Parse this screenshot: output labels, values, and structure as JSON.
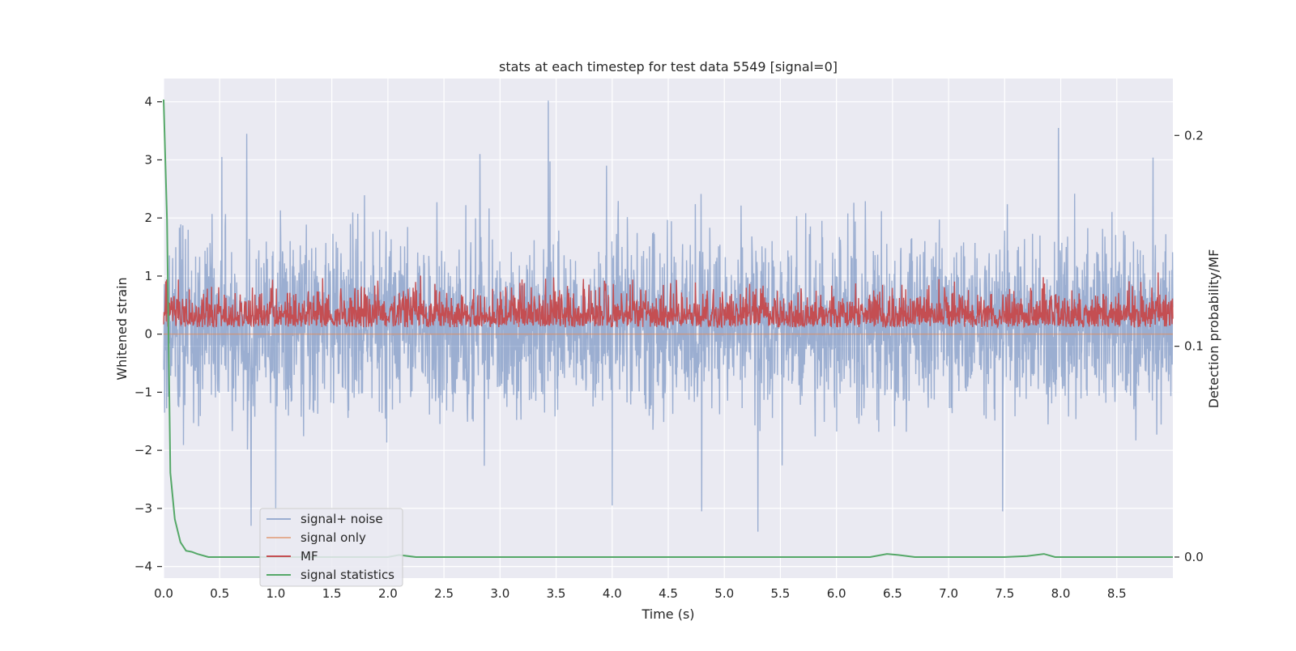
{
  "chart_data": {
    "type": "line",
    "title": "stats at each timestep for test data 5549 [signal=0]",
    "xlabel": "Time (s)",
    "ylabel": "Whitened strain",
    "y2label": "Detection probability/MF",
    "xlim": [
      0.0,
      9.0
    ],
    "ylim": [
      -4.2,
      4.4
    ],
    "y2lim": [
      -0.01,
      0.227
    ],
    "x_ticks": [
      0.0,
      0.5,
      1.0,
      1.5,
      2.0,
      2.5,
      3.0,
      3.5,
      4.0,
      4.5,
      5.0,
      5.5,
      6.0,
      6.5,
      7.0,
      7.5,
      8.0,
      8.5
    ],
    "x_tick_labels": [
      "0.0",
      "0.5",
      "1.0",
      "1.5",
      "2.0",
      "2.5",
      "3.0",
      "3.5",
      "4.0",
      "4.5",
      "5.0",
      "5.5",
      "6.0",
      "6.5",
      "7.0",
      "7.5",
      "8.0",
      "8.5"
    ],
    "y_ticks": [
      4,
      3,
      2,
      1,
      0,
      -1,
      -2,
      -3,
      -4
    ],
    "y_tick_labels": [
      "4",
      "3",
      "2",
      "1",
      "0",
      "−1",
      "−2",
      "−3",
      "−4"
    ],
    "y2_ticks": [
      0.2,
      0.1,
      0.0
    ],
    "y2_tick_labels": [
      "0.2",
      "0.1",
      "0.0"
    ],
    "grid": true,
    "legend_position": "lower-left",
    "colors": {
      "signal_noise": "#4c72b0",
      "signal_only": "#dd8452",
      "mf": "#c44e52",
      "signal_statistics": "#55a868",
      "plot_background": "#eaeaf2",
      "grid": "#ffffff"
    },
    "series": [
      {
        "name": "signal+ noise",
        "axis": "left",
        "color": "#4c72b0",
        "description_stats": {
          "approx_max": 4.0,
          "approx_min": -3.4,
          "typical_range": [
            -1.8,
            2.2
          ]
        },
        "peaks": [
          {
            "x": 0.74,
            "y": 3.45
          },
          {
            "x": 0.52,
            "y": 3.05
          },
          {
            "x": 3.43,
            "y": 4.02
          },
          {
            "x": 7.98,
            "y": 3.55
          },
          {
            "x": 2.82,
            "y": 3.1
          },
          {
            "x": 3.95,
            "y": 2.9
          },
          {
            "x": 0.78,
            "y": -3.3
          },
          {
            "x": 5.3,
            "y": -3.4
          },
          {
            "x": 1.0,
            "y": -3.0
          },
          {
            "x": 7.48,
            "y": -3.05
          },
          {
            "x": 4.8,
            "y": -3.05
          },
          {
            "x": 4.0,
            "y": -2.95
          }
        ]
      },
      {
        "name": "signal only",
        "axis": "left",
        "color": "#dd8452",
        "constant_value": 0.0
      },
      {
        "name": "MF",
        "axis": "right",
        "color": "#c44e52",
        "description_stats": {
          "approx_min": 0.109,
          "approx_max": 0.135
        }
      },
      {
        "name": "signal statistics",
        "axis": "right",
        "color": "#55a868",
        "x": [
          0.0,
          0.03,
          0.06,
          0.1,
          0.15,
          0.2,
          0.25,
          0.3,
          0.4,
          0.6,
          1.0,
          1.5,
          2.0,
          2.1,
          2.25,
          3.0,
          4.0,
          5.0,
          6.0,
          6.3,
          6.45,
          6.55,
          6.7,
          7.0,
          7.5,
          7.7,
          7.85,
          7.95,
          8.1,
          8.5,
          9.0
        ],
        "y": [
          0.217,
          0.16,
          0.04,
          0.018,
          0.007,
          0.003,
          0.0025,
          0.0015,
          0.0,
          0.0,
          0.0,
          0.0,
          0.0,
          0.001,
          0.0,
          0.0,
          0.0,
          0.0,
          0.0,
          0.0,
          0.0015,
          0.001,
          0.0,
          0.0,
          0.0,
          0.0005,
          0.0015,
          0.0,
          0.0,
          0.0,
          0.0
        ]
      }
    ]
  }
}
